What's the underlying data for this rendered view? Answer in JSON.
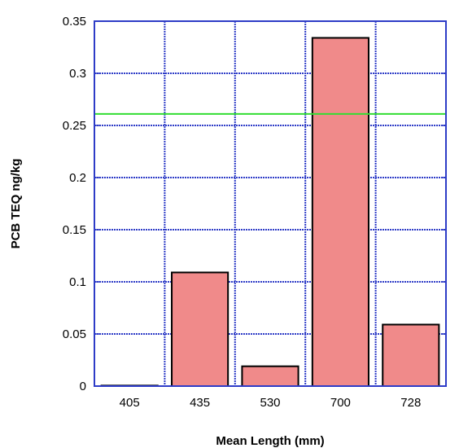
{
  "chart_data": {
    "type": "bar",
    "title": "",
    "xlabel": "Mean Length (mm)",
    "ylabel": "PCB TEQ ng/kg",
    "categories": [
      "405",
      "435",
      "530",
      "700",
      "728"
    ],
    "values": [
      0.0005,
      0.109,
      0.019,
      0.334,
      0.059
    ],
    "ylim": [
      0,
      0.35
    ],
    "yticks": [
      "0",
      "0.05",
      "0.1",
      "0.15",
      "0.2",
      "0.25",
      "0.3",
      "0.35"
    ],
    "reference_line": {
      "value": 0.261,
      "color": "#33dd33"
    },
    "bar_color": "#f08a8a",
    "grid": true,
    "grid_color": "#2e3cc7"
  }
}
